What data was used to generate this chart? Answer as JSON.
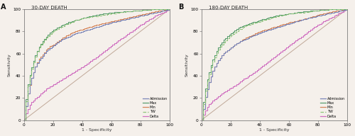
{
  "panel_A_title": "30-DAY DEATH",
  "panel_B_title": "180-DAY DEATH",
  "panel_A_label": "A",
  "panel_B_label": "B",
  "xlabel": "1 - Specificity",
  "ylabel": "Sensitivity",
  "colors": {
    "Admission": "#7b86b8",
    "Max": "#5a9e6e",
    "Min": "#d4855a",
    "TW": "#8ec47a",
    "Delta": "#d070c0"
  },
  "line_styles": {
    "Admission": "-",
    "Max": "-",
    "Min": "-",
    "TW": "--",
    "Delta": "-"
  },
  "background_color": "#f5f0eb",
  "reference_line_color": "#c0a898",
  "curves_A": {
    "Admission": {
      "fpr": [
        0,
        0.5,
        1,
        1.5,
        2,
        3,
        4,
        5,
        6,
        7,
        8,
        10,
        12,
        15,
        18,
        20,
        25,
        30,
        35,
        40,
        50,
        60,
        70,
        80,
        90,
        100
      ],
      "tpr": [
        0,
        5,
        10,
        15,
        20,
        28,
        33,
        38,
        42,
        46,
        50,
        54,
        57,
        62,
        65,
        67,
        72,
        75,
        78,
        80,
        84,
        88,
        91,
        94,
        97,
        100
      ]
    },
    "Max": {
      "fpr": [
        0,
        0.5,
        1,
        1.5,
        2,
        3,
        4,
        5,
        6,
        7,
        8,
        10,
        12,
        15,
        18,
        20,
        25,
        30,
        35,
        40,
        50,
        60,
        70,
        80,
        90,
        100
      ],
      "tpr": [
        0,
        8,
        15,
        22,
        28,
        36,
        42,
        47,
        52,
        56,
        60,
        66,
        70,
        75,
        79,
        81,
        85,
        88,
        90,
        92,
        95,
        97,
        98,
        99,
        100,
        100
      ]
    },
    "Min": {
      "fpr": [
        0,
        0.5,
        1,
        1.5,
        2,
        3,
        4,
        5,
        6,
        7,
        8,
        10,
        12,
        15,
        18,
        20,
        25,
        30,
        35,
        40,
        50,
        60,
        70,
        80,
        90,
        100
      ],
      "tpr": [
        0,
        5,
        10,
        15,
        20,
        27,
        33,
        38,
        42,
        46,
        50,
        55,
        58,
        63,
        67,
        68,
        73,
        77,
        80,
        82,
        86,
        89,
        92,
        95,
        98,
        100
      ]
    },
    "TW": {
      "fpr": [
        0,
        0.5,
        1,
        1.5,
        2,
        3,
        4,
        5,
        6,
        7,
        8,
        10,
        12,
        15,
        18,
        20,
        25,
        30,
        35,
        40,
        50,
        60,
        70,
        80,
        90,
        100
      ],
      "tpr": [
        0,
        7,
        14,
        20,
        26,
        35,
        41,
        46,
        51,
        55,
        59,
        65,
        69,
        74,
        78,
        80,
        84,
        87,
        90,
        92,
        94,
        96,
        98,
        99,
        100,
        100
      ]
    },
    "Delta": {
      "fpr": [
        0,
        1,
        2,
        3,
        5,
        8,
        10,
        15,
        20,
        25,
        30,
        35,
        40,
        45,
        50,
        55,
        60,
        65,
        70,
        75,
        80,
        85,
        90,
        95,
        100
      ],
      "tpr": [
        0,
        5,
        8,
        12,
        16,
        20,
        22,
        28,
        32,
        36,
        40,
        44,
        48,
        53,
        57,
        62,
        67,
        72,
        77,
        81,
        86,
        90,
        94,
        97,
        100
      ]
    }
  },
  "curves_B": {
    "Admission": {
      "fpr": [
        0,
        0.5,
        1,
        1.5,
        2,
        3,
        4,
        5,
        6,
        7,
        8,
        10,
        12,
        15,
        18,
        20,
        25,
        30,
        35,
        40,
        50,
        60,
        70,
        80,
        90,
        100
      ],
      "tpr": [
        0,
        4,
        8,
        12,
        17,
        24,
        29,
        34,
        38,
        42,
        46,
        51,
        55,
        60,
        63,
        65,
        70,
        73,
        76,
        79,
        83,
        87,
        91,
        94,
        97,
        100
      ]
    },
    "Max": {
      "fpr": [
        0,
        0.5,
        1,
        1.5,
        2,
        3,
        4,
        5,
        6,
        7,
        8,
        10,
        12,
        15,
        18,
        20,
        25,
        30,
        35,
        40,
        50,
        60,
        70,
        80,
        90,
        100
      ],
      "tpr": [
        0,
        6,
        13,
        19,
        25,
        32,
        38,
        43,
        48,
        52,
        56,
        62,
        67,
        72,
        76,
        78,
        83,
        86,
        88,
        90,
        94,
        96,
        98,
        99,
        100,
        100
      ]
    },
    "Min": {
      "fpr": [
        0,
        0.5,
        1,
        1.5,
        2,
        3,
        4,
        5,
        6,
        7,
        8,
        10,
        12,
        15,
        18,
        20,
        25,
        30,
        35,
        40,
        50,
        60,
        70,
        80,
        90,
        100
      ],
      "tpr": [
        0,
        4,
        8,
        12,
        17,
        24,
        29,
        34,
        38,
        42,
        46,
        51,
        55,
        60,
        63,
        65,
        70,
        74,
        77,
        80,
        84,
        88,
        91,
        95,
        98,
        100
      ]
    },
    "TW": {
      "fpr": [
        0,
        0.5,
        1,
        1.5,
        2,
        3,
        4,
        5,
        6,
        7,
        8,
        10,
        12,
        15,
        18,
        20,
        25,
        30,
        35,
        40,
        50,
        60,
        70,
        80,
        90,
        100
      ],
      "tpr": [
        0,
        5,
        11,
        17,
        22,
        30,
        36,
        41,
        46,
        50,
        54,
        60,
        65,
        70,
        74,
        76,
        81,
        85,
        87,
        89,
        93,
        96,
        97,
        99,
        100,
        100
      ]
    },
    "Delta": {
      "fpr": [
        0,
        1,
        2,
        3,
        5,
        8,
        10,
        15,
        20,
        25,
        30,
        35,
        40,
        45,
        50,
        55,
        60,
        65,
        70,
        75,
        80,
        85,
        90,
        95,
        100
      ],
      "tpr": [
        0,
        4,
        7,
        10,
        14,
        18,
        20,
        25,
        29,
        33,
        38,
        42,
        47,
        52,
        57,
        62,
        67,
        72,
        77,
        82,
        86,
        90,
        93,
        97,
        100
      ]
    }
  },
  "order": [
    "Max",
    "TW",
    "Admission",
    "Min",
    "Delta"
  ]
}
